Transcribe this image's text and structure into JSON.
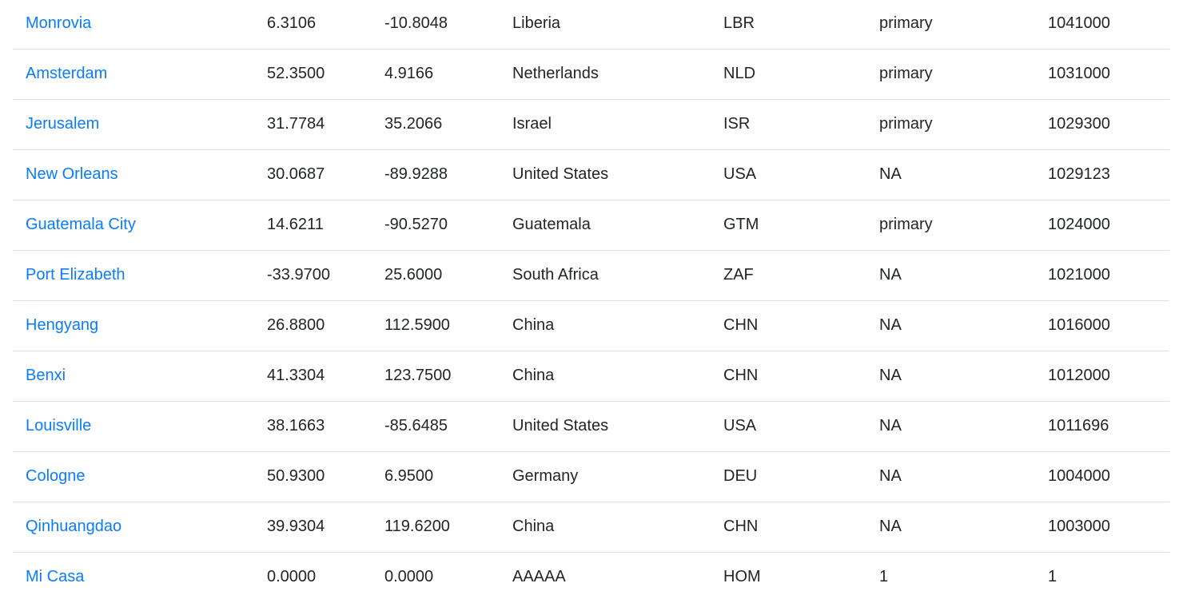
{
  "table": {
    "rows": [
      {
        "city": "Monrovia",
        "lat": "6.3106",
        "lng": "-10.8048",
        "country": "Liberia",
        "iso3": "LBR",
        "capital": "primary",
        "population": "1041000"
      },
      {
        "city": "Amsterdam",
        "lat": "52.3500",
        "lng": "4.9166",
        "country": "Netherlands",
        "iso3": "NLD",
        "capital": "primary",
        "population": "1031000"
      },
      {
        "city": "Jerusalem",
        "lat": "31.7784",
        "lng": "35.2066",
        "country": "Israel",
        "iso3": "ISR",
        "capital": "primary",
        "population": "1029300"
      },
      {
        "city": "New Orleans",
        "lat": "30.0687",
        "lng": "-89.9288",
        "country": "United States",
        "iso3": "USA",
        "capital": "NA",
        "population": "1029123"
      },
      {
        "city": "Guatemala City",
        "lat": "14.6211",
        "lng": "-90.5270",
        "country": "Guatemala",
        "iso3": "GTM",
        "capital": "primary",
        "population": "1024000"
      },
      {
        "city": "Port Elizabeth",
        "lat": "-33.9700",
        "lng": "25.6000",
        "country": "South Africa",
        "iso3": "ZAF",
        "capital": "NA",
        "population": "1021000"
      },
      {
        "city": "Hengyang",
        "lat": "26.8800",
        "lng": "112.5900",
        "country": "China",
        "iso3": "CHN",
        "capital": "NA",
        "population": "1016000"
      },
      {
        "city": "Benxi",
        "lat": "41.3304",
        "lng": "123.7500",
        "country": "China",
        "iso3": "CHN",
        "capital": "NA",
        "population": "1012000"
      },
      {
        "city": "Louisville",
        "lat": "38.1663",
        "lng": "-85.6485",
        "country": "United States",
        "iso3": "USA",
        "capital": "NA",
        "population": "1011696"
      },
      {
        "city": "Cologne",
        "lat": "50.9300",
        "lng": "6.9500",
        "country": "Germany",
        "iso3": "DEU",
        "capital": "NA",
        "population": "1004000"
      },
      {
        "city": "Qinhuangdao",
        "lat": "39.9304",
        "lng": "119.6200",
        "country": "China",
        "iso3": "CHN",
        "capital": "NA",
        "population": "1003000"
      },
      {
        "city": "Mi Casa",
        "lat": "0.0000",
        "lng": "0.0000",
        "country": "AAAAA",
        "iso3": "HOM",
        "capital": "1",
        "population": "1"
      }
    ]
  },
  "colors": {
    "link": "#0a7cff",
    "text": "#212529",
    "row_border": "#dee2e6"
  }
}
